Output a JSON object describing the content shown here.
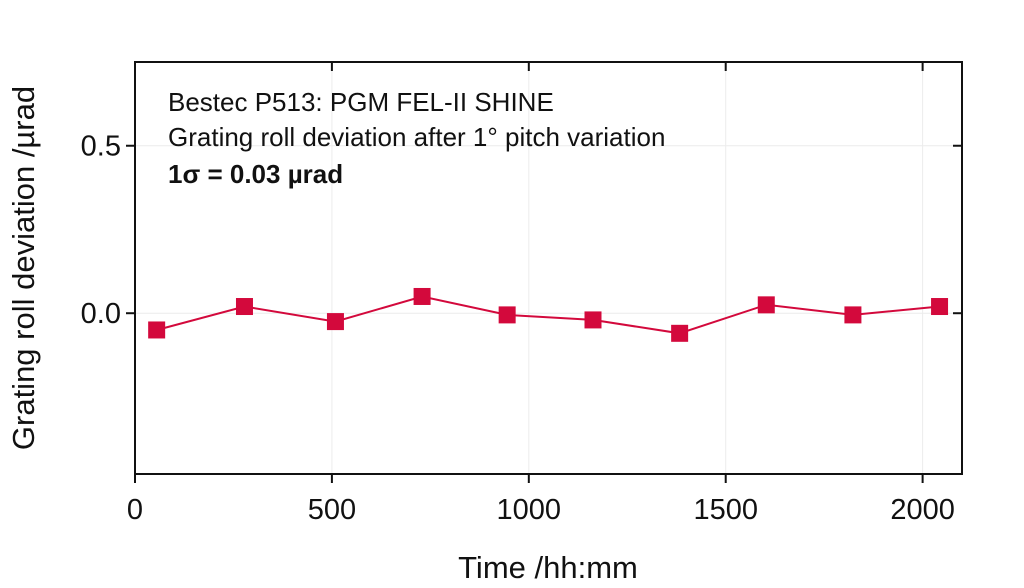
{
  "chart_data": {
    "type": "line",
    "xlabel": "Time /hh:mm",
    "ylabel": "Grating roll deviation /µrad",
    "xlim": [
      0,
      2100
    ],
    "ylim": [
      -0.48,
      0.75
    ],
    "xticks": [
      0,
      500,
      1000,
      1500,
      2000
    ],
    "yticks": [
      0.0,
      0.5
    ],
    "xtick_labels": [
      "0",
      "500",
      "1000",
      "1500",
      "2000"
    ],
    "ytick_labels": [
      "0.0",
      "0.5"
    ],
    "grid": true,
    "annotations": [
      "Bestec P513: PGM FEL-II SHINE",
      "Grating roll deviation after 1° pitch variation",
      "1σ = 0.03 µrad"
    ],
    "series": [
      {
        "color": "#d3093c",
        "marker": "square",
        "x": [
          55,
          278,
          509,
          729,
          945,
          1163,
          1383,
          1603,
          1823,
          2043
        ],
        "y": [
          -0.05,
          0.02,
          -0.025,
          0.05,
          -0.005,
          -0.02,
          -0.06,
          0.025,
          -0.005,
          0.02
        ]
      }
    ]
  }
}
